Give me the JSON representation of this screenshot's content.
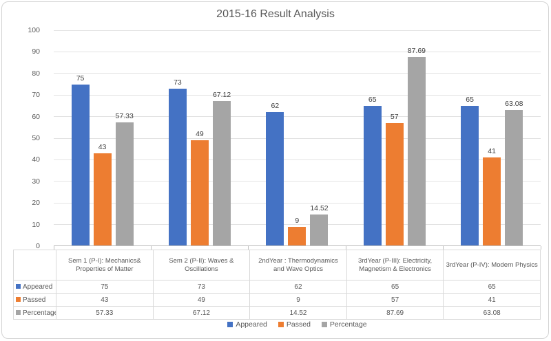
{
  "chart_data": {
    "type": "bar",
    "title": "2015-16 Result Analysis",
    "categories": [
      "Sem 1 (P-I): Mechanics& Properties of Matter",
      "Sem 2 (P-II): Waves & Oscillations",
      "2ndYear : Thermodynamics and Wave Optics",
      "3rdYear (P-III): Electricity, Magnetism & Electronics",
      "3rdYear (P-IV): Modern Physics"
    ],
    "series": [
      {
        "name": "Appeared",
        "color": "#4472C4",
        "values": [
          75,
          73,
          62,
          65,
          65
        ]
      },
      {
        "name": "Passed",
        "color": "#ED7D31",
        "values": [
          43,
          49,
          9,
          57,
          41
        ]
      },
      {
        "name": "Percentage",
        "color": "#A5A5A5",
        "values": [
          57.33,
          67.12,
          14.52,
          87.69,
          63.08
        ]
      }
    ],
    "xlabel": "",
    "ylabel": "",
    "ylim": [
      0,
      100
    ],
    "y_ticks": [
      0,
      10,
      20,
      30,
      40,
      50,
      60,
      70,
      80,
      90,
      100
    ],
    "grid": true,
    "legend_position": "bottom",
    "data_labels_shown": true,
    "data_table_shown": true
  }
}
